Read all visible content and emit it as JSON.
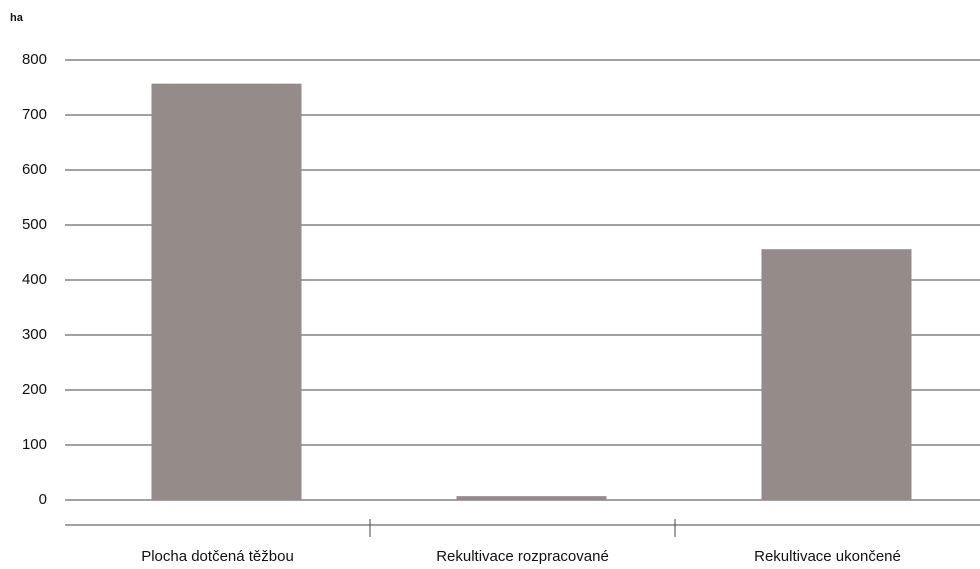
{
  "chart_data": {
    "type": "bar",
    "y_label": "ha",
    "categories": [
      "Plocha dotčená těžbou",
      "Rekultivace rozpracované",
      "Rekultivace ukončené"
    ],
    "values": [
      757,
      7,
      456
    ],
    "color": "#958b88",
    "ylim": [
      0,
      800
    ],
    "yticks": [
      0,
      100,
      200,
      300,
      400,
      500,
      600,
      700,
      800
    ],
    "grid": true
  }
}
